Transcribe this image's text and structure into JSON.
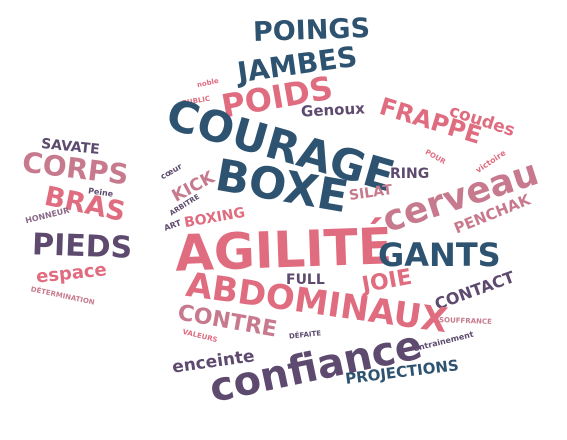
{
  "words": {
    "poings": "POINGS",
    "jambes": "JAMBES",
    "poids": "POIDS",
    "noble": "noble",
    "public": "PUBLIC",
    "genoux": "Genoux",
    "frappe": "FRAPPE",
    "coudes": "coudes",
    "courage": "COURAGE",
    "savate": "SAVATE",
    "corps": "CORPS",
    "peine": "Peine",
    "bras": "BRAS",
    "honneur": "HONNEUR",
    "pieds": "PIEDS",
    "espace": "espace",
    "determination": "DÉTERMINATION",
    "coeur": "cœur",
    "kick": "KICK",
    "arbitre": "ARBITRE",
    "art": "ART",
    "boxing": "BOXING",
    "boxe": "BOXE",
    "pour": "POUR",
    "victoire": "victoire",
    "ring": "RING",
    "silat": "SILAT",
    "cerveau": "cerveau",
    "penchak": "PENCHAK",
    "agilite": "AGILITÉ",
    "gants": "GANTS",
    "full": "FULL",
    "joie": "JOIE",
    "contact": "CONTACT",
    "abdominaux": "ABDOMINAUX",
    "souffrance": "SOUFFRANCE",
    "contre": "CONTRE",
    "valeurs": "VALEURS",
    "defaite": "DÉFAITE",
    "entrainement": "entrainement",
    "enceinte": "enceinte",
    "confiance": "confiance",
    "projections": "PROJECTIONS"
  }
}
